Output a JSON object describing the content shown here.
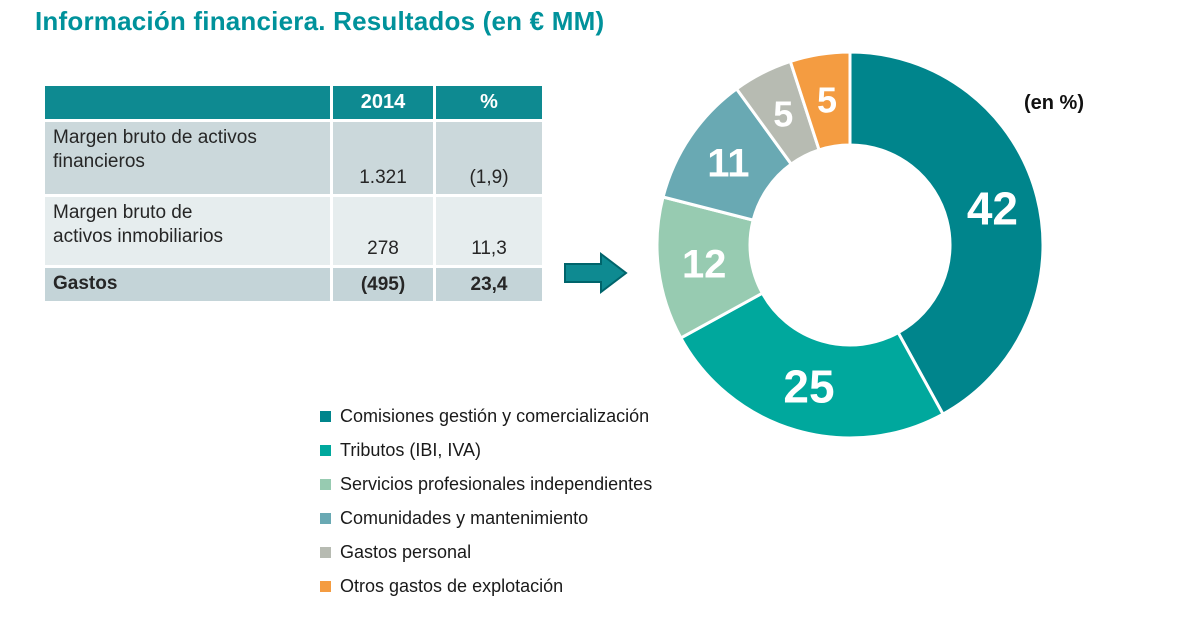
{
  "title": "Información financiera. Resultados (en € MM)",
  "table": {
    "columns": [
      "",
      "2014",
      "%"
    ],
    "rows": [
      {
        "label": "Margen bruto de activos\nfinancieros",
        "y2014": "1.321",
        "pct": "(1,9)"
      },
      {
        "label": "Margen bruto de\nactivos inmobiliarios",
        "y2014": "278",
        "pct": "11,3"
      },
      {
        "label": "Gastos",
        "y2014": "(495)",
        "pct": "23,4"
      }
    ]
  },
  "arrow_icon": "arrow-right-icon",
  "chart_data": {
    "type": "pie",
    "donut": true,
    "unit_label": "(en %)",
    "labels": [
      "Comisiones gestión y comercialización",
      "Tributos (IBI, IVA)",
      "Servicios profesionales independientes",
      "Comunidades y mantenimiento",
      "Gastos personal",
      "Otros gastos de explotación"
    ],
    "values": [
      42,
      25,
      12,
      11,
      5,
      5
    ],
    "colors": [
      "#00858C",
      "#00A89D",
      "#97CBB1",
      "#69A9B3",
      "#B7BBB2",
      "#F49C41"
    ],
    "start_angle": "12-oclock",
    "direction": "clockwise",
    "legend_position": "bottom-left",
    "segment_stroke": "#FFFFFF"
  },
  "theme": {
    "title_color": "#00929B",
    "table_header_bg": "#0E8A91",
    "row1_bg": "#CBD8DB",
    "row2_bg": "#E6EDEE",
    "row3_bg": "#C4D4D8",
    "arrow_fill": "#0E8A91",
    "arrow_stroke": "#00646B"
  }
}
